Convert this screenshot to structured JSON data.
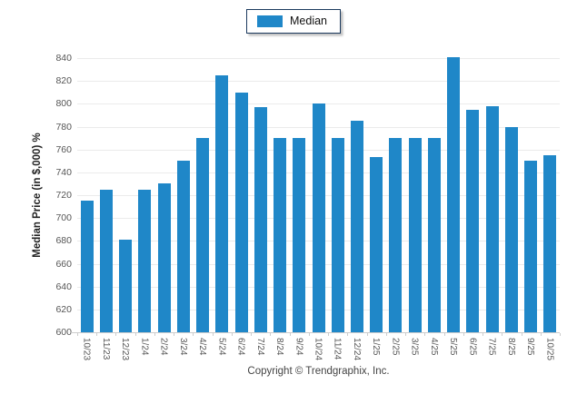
{
  "legend": {
    "label": "Median",
    "swatch_color": "#1f87c8",
    "border_color": "#1c3a5e"
  },
  "footer": {
    "copyright": "Copyright © Trendgraphix, Inc."
  },
  "chart_data": {
    "type": "bar",
    "title": "",
    "xlabel": "",
    "ylabel": "Median Price (in $,000) %",
    "categories": [
      "10/23",
      "11/23",
      "12/23",
      "1/24",
      "2/24",
      "3/24",
      "4/24",
      "5/24",
      "6/24",
      "7/24",
      "8/24",
      "9/24",
      "10/24",
      "11/24",
      "12/24",
      "1/25",
      "2/25",
      "3/25",
      "4/25",
      "5/25",
      "6/25",
      "7/25",
      "8/25",
      "9/25",
      "10/25"
    ],
    "series": [
      {
        "name": "Median",
        "values": [
          715,
          725,
          681,
          725,
          730,
          750,
          770,
          825,
          810,
          797,
          770,
          770,
          800,
          770,
          785,
          753,
          770,
          770,
          770,
          841,
          795,
          798,
          780,
          750,
          755
        ]
      }
    ],
    "ylim": [
      600,
      840
    ],
    "ytick_step": 20,
    "grid": "horizontal",
    "legend_position": "top-center",
    "bar_color": "#1f87c8",
    "gridline_color": "#ebebeb",
    "axis_color": "#cccccc",
    "tick_label_color": "#555555"
  }
}
